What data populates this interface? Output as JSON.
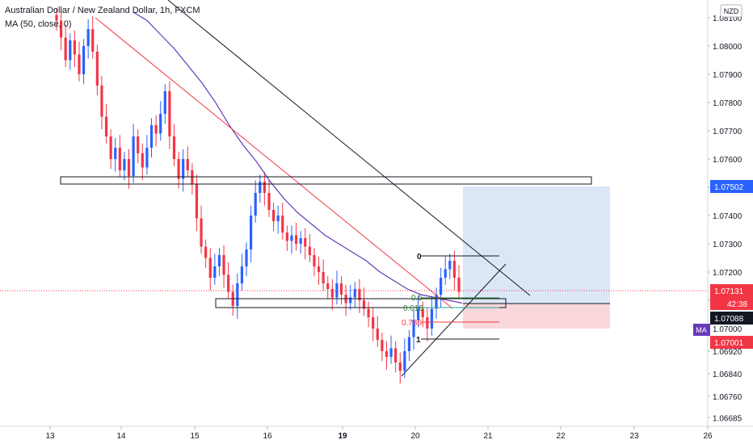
{
  "header": {
    "title": "Australian Dollar / New Zealand Dollar, 1h, FXCM",
    "indicator": "MA (50, close, 0)"
  },
  "currency_badge": "NZD",
  "price_tags": {
    "level_upper": "1.07502",
    "last_price": "1.07131",
    "countdown": "42:38",
    "level_lower": "1.07088",
    "stop": "1.07001",
    "ma_badge": "MA"
  },
  "fib_labels": [
    "0",
    "0.5",
    "0.618",
    "0.786",
    "1"
  ],
  "colors": {
    "up_candle": "#2962ff",
    "down_candle": "#f23645",
    "ma_line": "#673ab7",
    "red_trendline": "#f23645",
    "target_zone": "#dbe7f7",
    "stop_zone": "#f9d7da",
    "upper_tag": "#2962ff",
    "last_tag": "#f23645",
    "lower_tag": "#131722",
    "stop_tag": "#f23645",
    "ma_badge": "#673ab7"
  },
  "chart_data": {
    "type": "candlestick",
    "symbol": "AUDNZD",
    "timeframe": "1h",
    "x_tick_labels": [
      "13",
      "14",
      "15",
      "16",
      "19",
      "20",
      "21",
      "22",
      "23",
      "26"
    ],
    "y_tick_labels": [
      "1.06685",
      "1.06760",
      "1.06840",
      "1.06920",
      "1.07000",
      "1.07100",
      "1.07200",
      "1.07300",
      "1.07400",
      "1.07500",
      "1.07600",
      "1.07700",
      "1.07800",
      "1.07900",
      "1.08000",
      "1.08100"
    ],
    "ylim": [
      1.0668,
      1.0812
    ],
    "horizontal_levels": [
      1.07502,
      1.07088
    ],
    "candles_close": [
      1.0809,
      1.0803,
      1.0795,
      1.0802,
      1.0797,
      1.079,
      1.08,
      1.0806,
      1.0798,
      1.0786,
      1.0775,
      1.0768,
      1.076,
      1.0764,
      1.0756,
      1.076,
      1.0754,
      1.0768,
      1.0762,
      1.0757,
      1.0764,
      1.0772,
      1.0769,
      1.0776,
      1.0784,
      1.0768,
      1.076,
      1.0753,
      1.076,
      1.0756,
      1.0751,
      1.0739,
      1.0729,
      1.0725,
      1.0718,
      1.0722,
      1.0726,
      1.0719,
      1.0713,
      1.0708,
      1.0716,
      1.0722,
      1.0728,
      1.074,
      1.0748,
      1.0752,
      1.0748,
      1.0742,
      1.0738,
      1.074,
      1.0734,
      1.0731,
      1.0733,
      1.073,
      1.0732,
      1.0729,
      1.0726,
      1.0722,
      1.072,
      1.0716,
      1.0714,
      1.0711,
      1.0716,
      1.0712,
      1.0709,
      1.0711,
      1.0714,
      1.071,
      1.0707,
      1.0704,
      1.07,
      1.0696,
      1.0692,
      1.069,
      1.0693,
      1.0688,
      1.0685,
      1.0692,
      1.0697,
      1.0703,
      1.0707,
      1.0704,
      1.07,
      1.0707,
      1.0712,
      1.0718,
      1.0721,
      1.0724,
      1.0718,
      1.0713
    ],
    "ma_50_close": [
      1.0812,
      1.0809,
      1.0804,
      1.0799,
      1.0793,
      1.0787,
      1.078,
      1.0772,
      1.0765,
      1.0759,
      1.0752,
      1.0746,
      1.0741,
      1.0737,
      1.0733,
      1.073,
      1.0727,
      1.0724,
      1.072,
      1.0717,
      1.0714,
      1.0712,
      1.0711,
      1.071,
      1.0709
    ],
    "fibonacci": {
      "levels": [
        "0",
        "0.5",
        "0.618",
        "0.786",
        "1"
      ],
      "high": 1.0725,
      "low": 1.0693
    },
    "long_position": {
      "entry": 1.07088,
      "target": 1.07502,
      "stop": 1.07001
    }
  }
}
